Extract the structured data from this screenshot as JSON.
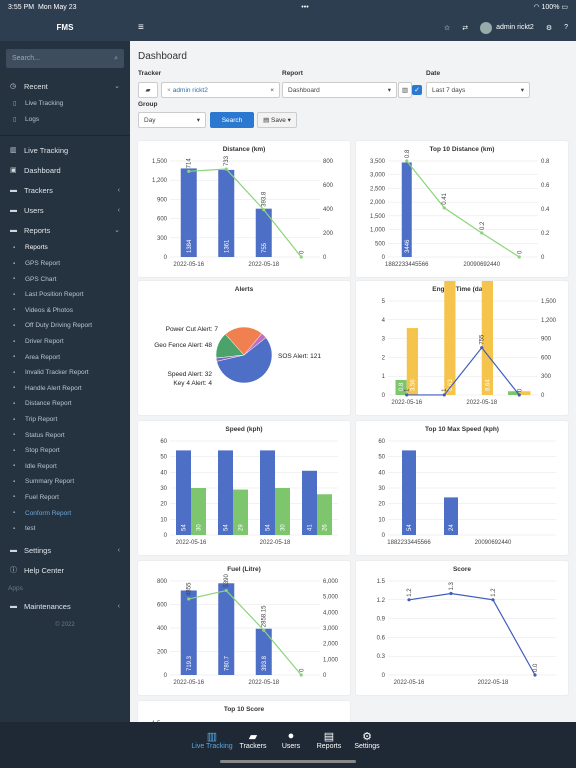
{
  "status": {
    "time": "3:55 PM",
    "date": "Mon May 23",
    "battery": "100%"
  },
  "sidebar": {
    "title": "FMS",
    "search_placeholder": "Search...",
    "recent_label": "Recent",
    "recent_items": [
      "Live Tracking",
      "Logs"
    ],
    "items": [
      {
        "label": "Live Tracking",
        "chev": false
      },
      {
        "label": "Dashboard",
        "chev": false
      },
      {
        "label": "Trackers",
        "chev": true
      },
      {
        "label": "Users",
        "chev": true
      },
      {
        "label": "Reports",
        "chev": true
      }
    ],
    "reports": [
      "Reports",
      "GPS Report",
      "GPS Chart",
      "Last Position Report",
      "Videos & Photos",
      "Off Duty Driving Report",
      "Driver Report",
      "Area Report",
      "Invalid Tracker Report",
      "Handle Alert Report",
      "Distance Report",
      "Trip Report",
      "Status Report",
      "Stop Report",
      "Idle Report",
      "Summary Report",
      "Fuel Report",
      "Conform Report",
      "test"
    ],
    "settings_label": "Settings",
    "help_label": "Help Center",
    "apps_label": "Apps",
    "maintenances_label": "Maintenances",
    "copyright": "© 2022"
  },
  "topbar": {
    "user": "admin rickt2"
  },
  "main": {
    "title": "Dashboard",
    "tracker_label": "Tracker",
    "tracker_value": "admin rickt2",
    "report_label": "Report",
    "report_value": "Dashboard",
    "date_label": "Date",
    "date_value": "Last 7 days",
    "group_label": "Group",
    "group_value": "Day",
    "search_btn": "Search",
    "save_btn": "Save"
  },
  "cards": {
    "distance": "Distance (km)",
    "top10distance": "Top 10 Distance (km)",
    "alerts": "Alerts",
    "engine": "Engine Time (days)",
    "speed": "Speed (kph)",
    "top10speed": "Top 10 Max Speed (kph)",
    "fuel": "Fuel (Litre)",
    "score": "Score",
    "top10score": "Top 10 Score"
  },
  "tabs": [
    "Live Tracking",
    "Trackers",
    "Users",
    "Reports",
    "Settings"
  ],
  "chart_data": [
    {
      "type": "bar",
      "title": "Distance (km)",
      "categories": [
        "2022-05-16",
        "",
        "2022-05-18",
        ""
      ],
      "values": [
        1384,
        1361,
        755,
        0
      ],
      "line": [
        714,
        733,
        393.8,
        0
      ],
      "yticks": [
        0,
        300,
        600,
        900,
        1200,
        1500
      ],
      "ytick_labels": [
        "0",
        "300",
        "600",
        "900",
        "1,200",
        "1,500"
      ],
      "y2ticks": [
        "0",
        "200",
        "400",
        "600",
        "800"
      ]
    },
    {
      "type": "bar",
      "title": "Top 10 Distance (km)",
      "categories": [
        "1882233445566",
        "",
        "20090692440",
        ""
      ],
      "values": [
        3446,
        0,
        0,
        0
      ],
      "line": [
        0.8,
        0.41,
        0.2,
        0
      ],
      "ytick_labels": [
        "0",
        "500",
        "1,000",
        "1,500",
        "2,000",
        "2,500",
        "3,000",
        "3,500"
      ],
      "y2ticks": [
        "0",
        "0.2",
        "0.4",
        "0.6",
        "0.8"
      ]
    },
    {
      "type": "pie",
      "title": "Alerts",
      "slices": [
        {
          "label": "SOS Alert: 121",
          "value": 121,
          "color": "#4e6fc6"
        },
        {
          "label": "Key 4 Alert: 4",
          "value": 4,
          "color": "#8a5fc0"
        },
        {
          "label": "Speed Alert: 32",
          "value": 32,
          "color": "#4ba36a"
        },
        {
          "label": "Geo Fence Alert: 48",
          "value": 48,
          "color": "#f08050"
        },
        {
          "label": "Power Cut Alert: 7",
          "value": 7,
          "color": "#c070c0"
        }
      ]
    },
    {
      "type": "bar",
      "title": "Engine Time (days)",
      "categories": [
        "2022-05-16",
        "",
        "2022-05-18",
        ""
      ],
      "series": [
        {
          "values": [
            0.8,
            0,
            0,
            0.2
          ],
          "color": "#7dc66e"
        },
        {
          "values": [
            3.56,
            8.63,
            8.64,
            0.2
          ],
          "color": "#f5c44c"
        }
      ],
      "line": [
        1,
        1,
        755,
        0
      ],
      "ytick_labels": [
        "0",
        "1",
        "2",
        "3",
        "4",
        "5"
      ],
      "y2ticks": [
        "0",
        "300",
        "600",
        "900",
        "1,200",
        "1,500"
      ]
    },
    {
      "type": "bar",
      "title": "Speed (kph)",
      "categories": [
        "2022-05-16",
        "",
        "2022-05-18",
        ""
      ],
      "series": [
        {
          "values": [
            54,
            54,
            54,
            41
          ],
          "color": "#4e6fc6"
        },
        {
          "values": [
            30,
            29,
            30,
            26
          ],
          "color": "#7dc66e"
        }
      ],
      "ytick_labels": [
        "0",
        "10",
        "20",
        "30",
        "40",
        "50",
        "60"
      ]
    },
    {
      "type": "bar",
      "title": "Top 10 Max Speed (kph)",
      "categories": [
        "1882233445566",
        "",
        "20090692440",
        ""
      ],
      "values": [
        54,
        24,
        0,
        0
      ],
      "ytick_labels": [
        "0",
        "10",
        "20",
        "30",
        "40",
        "50",
        "60"
      ]
    },
    {
      "type": "bar",
      "title": "Fuel (Litre)",
      "categories": [
        "2022-05-16",
        "",
        "2022-05-18",
        ""
      ],
      "values": [
        719.3,
        780.7,
        393.8,
        0
      ],
      "line": [
        4855,
        5390,
        2858.15,
        0
      ],
      "ytick_labels": [
        "0",
        "200",
        "400",
        "600",
        "800"
      ],
      "y2ticks": [
        "0",
        "1,000",
        "2,000",
        "3,000",
        "4,000",
        "5,000",
        "6,000"
      ]
    },
    {
      "type": "line",
      "title": "Score",
      "categories": [
        "2022-05-16",
        "",
        "2022-05-18",
        ""
      ],
      "values": [
        1.2,
        1.3,
        1.2,
        0
      ],
      "ytick_labels": [
        "0",
        "0.3",
        "0.6",
        "0.9",
        "1.2",
        "1.5"
      ]
    }
  ]
}
